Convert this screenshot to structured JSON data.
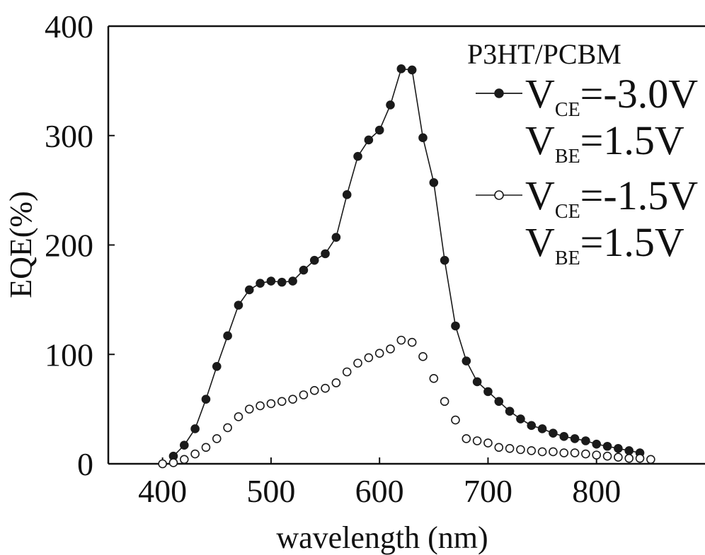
{
  "chart_data": {
    "type": "line",
    "title": "",
    "xlabel": "wavelength (nm)",
    "ylabel": "EQE(%)",
    "xlim": [
      350,
      900
    ],
    "ylim": [
      0,
      400
    ],
    "xticks": [
      400,
      500,
      600,
      700,
      800
    ],
    "yticks": [
      0,
      100,
      200,
      300,
      400
    ],
    "grid": false,
    "legend_title": "P3HT/PCBM",
    "legend_position": "top-right",
    "series": [
      {
        "name_parts": {
          "v1": "V",
          "s1": "CE",
          "e1": "=-3.0V",
          "v2": "V",
          "s2": "BE",
          "e2": "=1.5V"
        },
        "marker": "filled-circle",
        "line": true,
        "color": "#1a1a1a",
        "x": [
          410,
          420,
          430,
          440,
          450,
          460,
          470,
          480,
          490,
          500,
          510,
          520,
          530,
          540,
          550,
          560,
          570,
          580,
          590,
          600,
          610,
          620,
          630,
          640,
          650,
          660,
          670,
          680,
          690,
          700,
          710,
          720,
          730,
          740,
          750,
          760,
          770,
          780,
          790,
          800,
          810,
          820,
          830,
          840
        ],
        "y": [
          7,
          17,
          32,
          59,
          89,
          117,
          145,
          159,
          165,
          167,
          166,
          167,
          177,
          186,
          192,
          207,
          246,
          281,
          296,
          305,
          328,
          361,
          360,
          298,
          257,
          186,
          126,
          94,
          75,
          66,
          57,
          48,
          41,
          35,
          32,
          28,
          25,
          23,
          21,
          18,
          16,
          14,
          12,
          10
        ]
      },
      {
        "name_parts": {
          "v1": "V",
          "s1": "CE",
          "e1": "=-1.5V",
          "v2": "V",
          "s2": "BE",
          "e2": "=1.5V"
        },
        "marker": "open-circle",
        "line": false,
        "color": "#1a1a1a",
        "x": [
          400,
          410,
          420,
          430,
          440,
          450,
          460,
          470,
          480,
          490,
          500,
          510,
          520,
          530,
          540,
          550,
          560,
          570,
          580,
          590,
          600,
          610,
          620,
          630,
          640,
          650,
          660,
          670,
          680,
          690,
          700,
          710,
          720,
          730,
          740,
          750,
          760,
          770,
          780,
          790,
          800,
          810,
          820,
          830,
          840,
          850
        ],
        "y": [
          0,
          1,
          4,
          9,
          15,
          23,
          33,
          43,
          50,
          53,
          55,
          57,
          59,
          63,
          67,
          69,
          74,
          84,
          92,
          97,
          101,
          105,
          113,
          111,
          98,
          78,
          57,
          40,
          23,
          21,
          19,
          15,
          14,
          13,
          12,
          11,
          11,
          10,
          10,
          9,
          8,
          7,
          6,
          5,
          5,
          4
        ]
      }
    ]
  }
}
